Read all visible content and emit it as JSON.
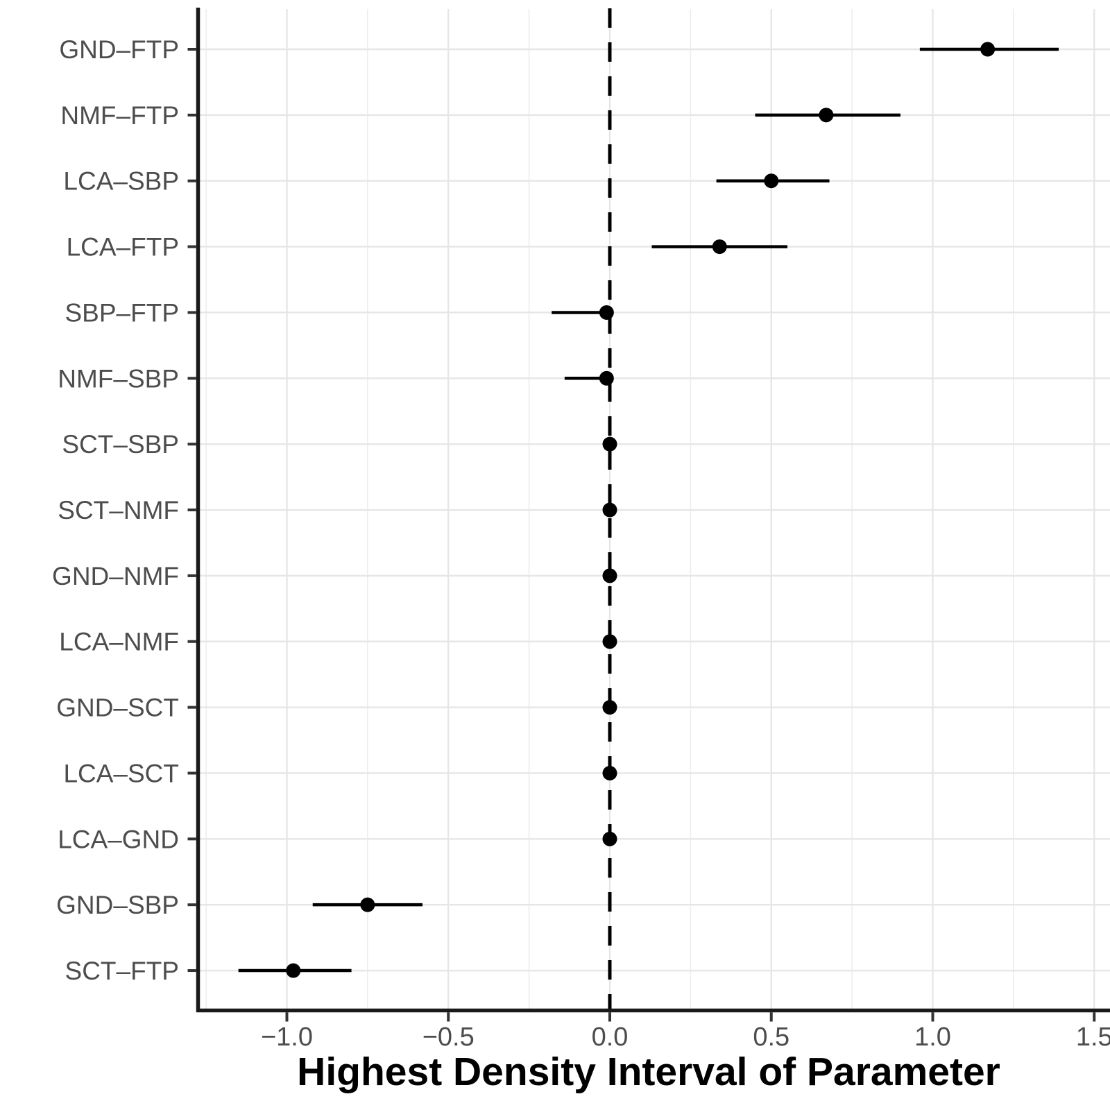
{
  "chart_data": {
    "type": "scatter",
    "subtype": "forest_hdi_interval_plot",
    "title": "",
    "xlabel": "Highest Density Interval of Parameter",
    "ylabel": "",
    "xlim": [
      -1.28,
      1.55
    ],
    "x_major_ticks": [
      -1.0,
      -0.5,
      0.0,
      0.5,
      1.0,
      1.5
    ],
    "x_tick_labels": [
      "−1.0",
      "−0.5",
      "0.0",
      "0.5",
      "1.0",
      "1.5"
    ],
    "x_minor_gridlines": [
      -1.25,
      -0.75,
      -0.25,
      0.25,
      0.75,
      1.25
    ],
    "reference_line_x": 0.0,
    "grid": "on",
    "legend_position": "none",
    "categories_top_to_bottom": [
      "GND–FTP",
      "NMF–FTP",
      "LCA–SBP",
      "LCA–FTP",
      "SBP–FTP",
      "NMF–SBP",
      "SCT–SBP",
      "SCT–NMF",
      "GND–NMF",
      "LCA–NMF",
      "GND–SCT",
      "LCA–SCT",
      "LCA–GND",
      "GND–SBP",
      "SCT–FTP"
    ],
    "points": [
      {
        "label": "GND–FTP",
        "hdi_low": 0.96,
        "estimate": 1.17,
        "hdi_high": 1.39
      },
      {
        "label": "NMF–FTP",
        "hdi_low": 0.45,
        "estimate": 0.67,
        "hdi_high": 0.9
      },
      {
        "label": "LCA–SBP",
        "hdi_low": 0.33,
        "estimate": 0.5,
        "hdi_high": 0.68
      },
      {
        "label": "LCA–FTP",
        "hdi_low": 0.13,
        "estimate": 0.34,
        "hdi_high": 0.55
      },
      {
        "label": "SBP–FTP",
        "hdi_low": -0.18,
        "estimate": -0.01,
        "hdi_high": 0.01
      },
      {
        "label": "NMF–SBP",
        "hdi_low": -0.14,
        "estimate": -0.01,
        "hdi_high": 0.01
      },
      {
        "label": "SCT–SBP",
        "hdi_low": -0.02,
        "estimate": 0.0,
        "hdi_high": 0.01
      },
      {
        "label": "SCT–NMF",
        "hdi_low": -0.02,
        "estimate": 0.0,
        "hdi_high": 0.01
      },
      {
        "label": "GND–NMF",
        "hdi_low": -0.01,
        "estimate": 0.0,
        "hdi_high": 0.01
      },
      {
        "label": "LCA–NMF",
        "hdi_low": -0.02,
        "estimate": 0.0,
        "hdi_high": 0.01
      },
      {
        "label": "GND–SCT",
        "hdi_low": -0.02,
        "estimate": 0.0,
        "hdi_high": 0.01
      },
      {
        "label": "LCA–SCT",
        "hdi_low": -0.02,
        "estimate": 0.0,
        "hdi_high": 0.02
      },
      {
        "label": "LCA–GND",
        "hdi_low": -0.01,
        "estimate": 0.0,
        "hdi_high": 0.01
      },
      {
        "label": "GND–SBP",
        "hdi_low": -0.92,
        "estimate": -0.75,
        "hdi_high": -0.58
      },
      {
        "label": "SCT–FTP",
        "hdi_low": -1.15,
        "estimate": -0.98,
        "hdi_high": -0.8
      }
    ],
    "colors": {
      "point": "#000000",
      "interval_line": "#000000",
      "reference_line": "#000000",
      "grid_major": "#e6e6e6",
      "grid_minor": "#ededed",
      "axis_line": "#1a1a1a",
      "tick_mark": "#333333",
      "tick_label": "#4d4d4d",
      "axis_title": "#000000",
      "background": "#ffffff"
    }
  }
}
